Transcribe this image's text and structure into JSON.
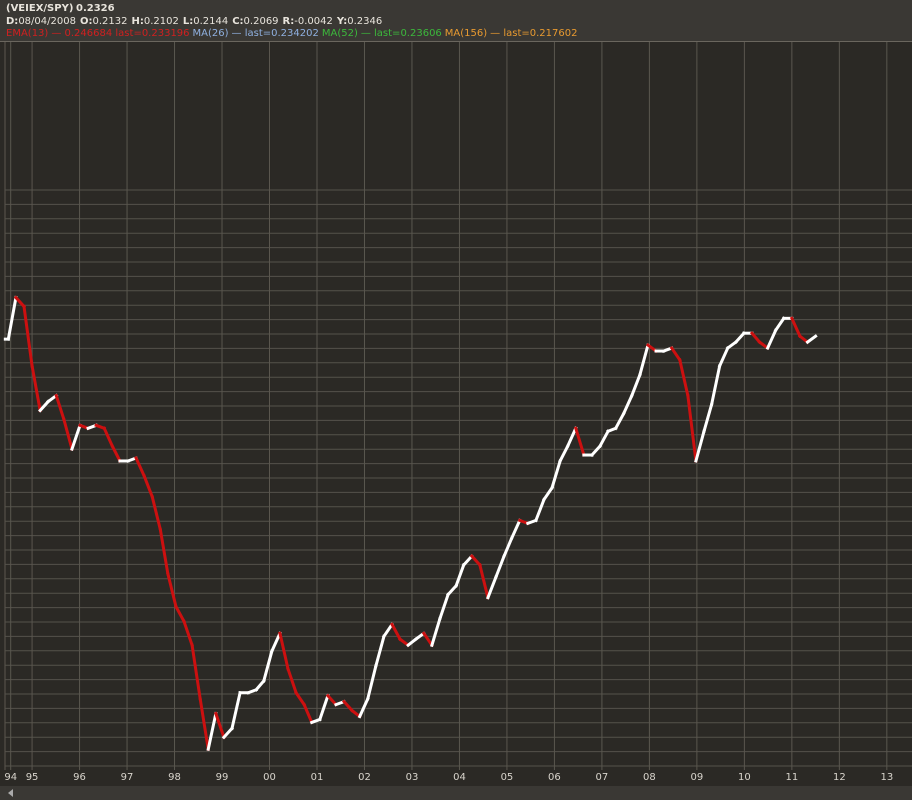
{
  "header": {
    "symbol": "(VEIEX/SPY)",
    "price": "0.2326",
    "fields": [
      {
        "label": "D:",
        "value": "08/04/2008"
      },
      {
        "label": "O:",
        "value": "0.2132"
      },
      {
        "label": "H:",
        "value": "0.2102"
      },
      {
        "label": "L:",
        "value": "0.2144"
      },
      {
        "label": "C:",
        "value": "0.2069"
      },
      {
        "label": "R:",
        "value": "-0.0042"
      },
      {
        "label": "Y:",
        "value": "0.2346"
      }
    ],
    "indicators": [
      {
        "name": "EMA(13)",
        "text": "— 0.246684 last=0.233196",
        "color": "#d02020"
      },
      {
        "name": "MA(26)",
        "text": "— last=0.234202",
        "color": "#8fb0e0"
      },
      {
        "name": "MA(52)",
        "text": "— last=0.23606",
        "color": "#3cb83c"
      },
      {
        "name": "MA(156)",
        "text": "— last=0.217602",
        "color": "#e89a30"
      }
    ]
  },
  "chart_data": {
    "type": "price-bars",
    "up_color": "#ffffff",
    "down_color": "#cc1010",
    "x": [
      1994.5,
      1994.66,
      1994.83,
      1995.0,
      1995.17,
      1995.34,
      1995.51,
      1995.67,
      1995.84,
      1996.01,
      1996.18,
      1996.35,
      1996.52,
      1996.69,
      1996.85,
      1997.02,
      1997.19,
      1997.36,
      1997.53,
      1997.7,
      1997.86,
      1998.03,
      1998.2,
      1998.37,
      1998.54,
      1998.71,
      1998.87,
      1999.04,
      1999.21,
      1999.38,
      1999.55,
      1999.72,
      1999.88,
      2000.05,
      2000.22,
      2000.39,
      2000.56,
      2000.73,
      2000.89,
      2001.06,
      2001.23,
      2001.4,
      2001.57,
      2001.74,
      2001.9,
      2002.07,
      2002.24,
      2002.41,
      2002.58,
      2002.75,
      2002.92,
      2003.08,
      2003.25,
      2003.42,
      2003.59,
      2003.76,
      2003.93,
      2004.09,
      2004.26,
      2004.43,
      2004.6,
      2004.77,
      2004.94,
      2005.1,
      2005.27,
      2005.44,
      2005.61,
      2005.78,
      2005.95,
      2006.12,
      2006.28,
      2006.45,
      2006.62,
      2006.79,
      2006.96,
      2007.13,
      2007.29,
      2007.46,
      2007.63,
      2007.8,
      2007.97,
      2008.14,
      2008.3,
      2008.47,
      2008.64,
      2008.81,
      2008.98,
      2009.15,
      2009.31,
      2009.48,
      2009.65,
      2009.82,
      2009.99,
      2010.16,
      2010.32,
      2010.49,
      2010.66,
      2010.83,
      2011.0,
      2011.17,
      2011.33,
      2011.5
    ],
    "values": [
      0.23,
      0.244,
      0.241,
      0.221,
      0.206,
      0.209,
      0.211,
      0.203,
      0.193,
      0.201,
      0.2,
      0.201,
      0.2,
      0.194,
      0.189,
      0.189,
      0.19,
      0.184,
      0.177,
      0.166,
      0.151,
      0.14,
      0.135,
      0.127,
      0.109,
      0.092,
      0.104,
      0.096,
      0.099,
      0.111,
      0.111,
      0.112,
      0.115,
      0.125,
      0.131,
      0.119,
      0.111,
      0.107,
      0.101,
      0.102,
      0.11,
      0.107,
      0.108,
      0.105,
      0.103,
      0.109,
      0.12,
      0.13,
      0.134,
      0.129,
      0.127,
      0.129,
      0.131,
      0.127,
      0.136,
      0.144,
      0.147,
      0.154,
      0.157,
      0.154,
      0.143,
      0.15,
      0.157,
      0.163,
      0.169,
      0.168,
      0.169,
      0.176,
      0.18,
      0.189,
      0.194,
      0.2,
      0.191,
      0.191,
      0.194,
      0.199,
      0.2,
      0.205,
      0.211,
      0.218,
      0.228,
      0.226,
      0.226,
      0.227,
      0.223,
      0.211,
      0.189,
      0.199,
      0.208,
      0.221,
      0.227,
      0.229,
      0.232,
      0.232,
      0.229,
      0.227,
      0.233,
      0.237,
      0.237,
      0.231,
      0.229,
      0.231
    ],
    "xlim": [
      1994.43,
      2013.53
    ],
    "ylim": [
      0.085,
      0.33
    ],
    "xticks": [
      {
        "value": 1994.55,
        "label": "94"
      },
      {
        "value": 1995,
        "label": "95"
      },
      {
        "value": 1996,
        "label": "96"
      },
      {
        "value": 1997,
        "label": "97"
      },
      {
        "value": 1998,
        "label": "98"
      },
      {
        "value": 1999,
        "label": "99"
      },
      {
        "value": 2000,
        "label": "00"
      },
      {
        "value": 2001,
        "label": "01"
      },
      {
        "value": 2002,
        "label": "02"
      },
      {
        "value": 2003,
        "label": "03"
      },
      {
        "value": 2004,
        "label": "04"
      },
      {
        "value": 2005,
        "label": "05"
      },
      {
        "value": 2006,
        "label": "06"
      },
      {
        "value": 2007,
        "label": "07"
      },
      {
        "value": 2008,
        "label": "08"
      },
      {
        "value": 2009,
        "label": "09"
      },
      {
        "value": 2010,
        "label": "10"
      },
      {
        "value": 2011,
        "label": "11"
      },
      {
        "value": 2012,
        "label": "12"
      },
      {
        "value": 2013,
        "label": "13"
      }
    ],
    "grid": true
  }
}
